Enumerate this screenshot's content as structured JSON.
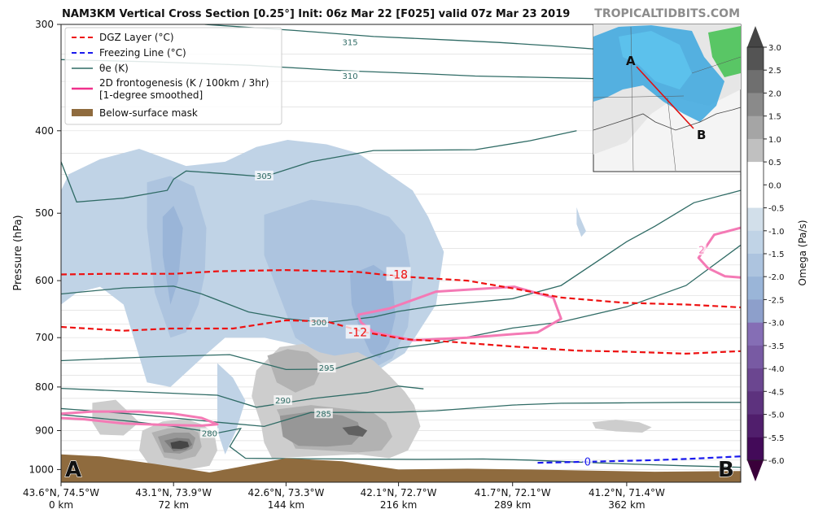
{
  "header": {
    "title": "NAM3KM Vertical Cross Section [0.25°] Init: 06z Mar 22 [F025] valid 07z Mar 23 2019",
    "brand": "TROPICALTIDBITS.COM"
  },
  "chart_data": {
    "type": "contour",
    "ylabel": "Pressure (hPa)",
    "y_scale": "log",
    "ylim": [
      1035,
      300
    ],
    "y_ticks": [
      300,
      400,
      500,
      600,
      700,
      800,
      900,
      1000
    ],
    "xlim": [
      0,
      435
    ],
    "x_ticks": [
      {
        "km": 0,
        "label1": "43.6°N, 74.5°W",
        "label2": "0 km"
      },
      {
        "km": 72,
        "label1": "43.1°N, 73.9°W",
        "label2": "72 km"
      },
      {
        "km": 144,
        "label1": "42.6°N, 73.3°W",
        "label2": "144 km"
      },
      {
        "km": 216,
        "label1": "42.1°N, 72.7°W",
        "label2": "216 km"
      },
      {
        "km": 289,
        "label1": "41.7°N, 72.1°W",
        "label2": "289 km"
      },
      {
        "km": 362,
        "label1": "41.2°N, 71.4°W",
        "label2": "362 km"
      }
    ],
    "endpoints": {
      "start": "A",
      "end": "B"
    },
    "legend": {
      "placement": "top-left",
      "entries": [
        {
          "label": "DGZ Layer (°C)",
          "color": "#ee1111",
          "style": "dashed"
        },
        {
          "label": "Freezing Line (°C)",
          "color": "#1a1aee",
          "style": "dashed"
        },
        {
          "label": "θe (K)",
          "color": "#2f6b65",
          "style": "solid"
        },
        {
          "label": "2D frontogenesis (K / 100km / 3hr)",
          "label2": "[1-degree smoothed]",
          "color": "#f0308c",
          "style": "solid"
        },
        {
          "label": "Below-surface mask",
          "color": "#8f6b3e",
          "style": "patch"
        }
      ]
    },
    "colorbar": {
      "label": "Omega (Pa/s)",
      "ticks": [
        "3.0",
        "2.5",
        "2.0",
        "1.5",
        "1.0",
        "0.5",
        "0.0",
        "-0.5",
        "-1.0",
        "-1.5",
        "-2.0",
        "-2.5",
        "-3.0",
        "-3.5",
        "-4.0",
        "-4.5",
        "-5.0",
        "-5.5",
        "-6.0"
      ]
    },
    "theta_e_labels": [
      {
        "value": "315",
        "km": 185,
        "p": 315
      },
      {
        "value": "310",
        "km": 185,
        "p": 345
      },
      {
        "value": "305",
        "km": 130,
        "p": 452
      },
      {
        "value": "300",
        "km": 165,
        "p": 672
      },
      {
        "value": "295",
        "km": 170,
        "p": 760
      },
      {
        "value": "290",
        "km": 142,
        "p": 830
      },
      {
        "value": "285",
        "km": 168,
        "p": 860
      },
      {
        "value": "280",
        "km": 95,
        "p": 907
      }
    ],
    "dgz_labels": [
      {
        "value": "-18",
        "km": 216,
        "p": 590
      },
      {
        "value": "-12",
        "km": 190,
        "p": 690
      }
    ],
    "freezing_label": {
      "value": "0",
      "km": 337,
      "p": 980
    },
    "frontogenesis_labels": [
      {
        "value": "2",
        "km": 410,
        "p": 552
      }
    ],
    "theta_e_lines": [
      {
        "km": [
          92,
          150,
          200,
          250,
          280,
          315,
          355
        ],
        "p": [
          300,
          305,
          310,
          313,
          315,
          318,
          322
        ]
      },
      {
        "km": [
          0,
          60,
          120,
          180,
          235,
          265,
          300,
          330,
          360
        ],
        "p": [
          330,
          332,
          335,
          340,
          343,
          345,
          346,
          347,
          348
        ]
      },
      {
        "km": [
          0,
          10,
          40,
          68,
          72,
          80,
          110,
          130,
          160,
          200,
          265,
          300,
          330
        ],
        "p": [
          435,
          485,
          480,
          470,
          456,
          446,
          450,
          453,
          435,
          422,
          421,
          411,
          400
        ]
      },
      {
        "km": [
          0,
          40,
          72,
          90,
          120,
          144,
          170,
          200,
          216,
          240,
          289,
          320,
          362,
          380,
          405,
          435
        ],
        "p": [
          622,
          612,
          609,
          622,
          653,
          665,
          672,
          662,
          652,
          642,
          630,
          608,
          540,
          518,
          486,
          470
        ]
      },
      {
        "km": [
          0,
          60,
          108,
          144,
          175,
          216,
          240,
          289,
          320,
          362,
          400,
          435
        ],
        "p": [
          745,
          737,
          733,
          763,
          762,
          720,
          711,
          682,
          671,
          644,
          608,
          545
        ]
      },
      {
        "km": [
          0,
          100,
          125,
          162,
          196,
          216,
          232
        ],
        "p": [
          803,
          818,
          845,
          825,
          812,
          798,
          804
        ]
      },
      {
        "km": [
          0,
          50,
          100,
          130,
          160,
          210,
          240,
          289,
          320,
          362,
          400,
          435
        ],
        "p": [
          848,
          862,
          880,
          890,
          857,
          857,
          853,
          840,
          836,
          835,
          834,
          834
        ]
      },
      {
        "km": [
          0,
          45,
          72,
          100,
          115,
          108,
          118,
          180,
          230,
          270,
          300,
          330,
          362,
          400,
          435
        ],
        "p": [
          862,
          878,
          890,
          906,
          895,
          940,
          970,
          972,
          973,
          972,
          975,
          980,
          985,
          990,
          994
        ]
      }
    ],
    "dgz_lines": [
      {
        "value": -18,
        "km": [
          0,
          30,
          60,
          72,
          100,
          144,
          190,
          216,
          260,
          290,
          320,
          360,
          400,
          435
        ],
        "p": [
          590,
          589,
          589,
          589,
          585,
          583,
          586,
          593,
          600,
          613,
          628,
          637,
          640,
          645
        ]
      },
      {
        "value": -12,
        "km": [
          0,
          40,
          70,
          110,
          144,
          170,
          195,
          220,
          250,
          289,
          330,
          360,
          400,
          435
        ],
        "p": [
          680,
          687,
          683,
          683,
          668,
          670,
          690,
          703,
          708,
          717,
          725,
          727,
          731,
          726
        ]
      }
    ],
    "freezing_line": {
      "km": [
        305,
        340,
        380,
        400,
        420,
        435
      ],
      "p": [
        982,
        979,
        975,
        972,
        968,
        965
      ]
    },
    "frontogenesis_contours": [
      {
        "km": [
          190,
          210,
          240,
          290,
          315,
          320,
          305,
          260,
          225,
          200,
          192,
          190
        ],
        "p": [
          658,
          647,
          618,
          610,
          628,
          665,
          690,
          700,
          705,
          690,
          672,
          658
        ]
      },
      {
        "km": [
          435,
          418,
          408,
          414,
          425,
          435
        ],
        "p": [
          520,
          530,
          564,
          580,
          593,
          595
        ]
      },
      {
        "km": [
          0,
          20,
          50,
          72,
          90,
          100,
          90,
          70,
          40,
          15,
          0
        ],
        "p": [
          860,
          855,
          855,
          860,
          870,
          885,
          888,
          887,
          883,
          873,
          870
        ]
      }
    ],
    "omega_regions": [
      {
        "value": -1.0,
        "km": [
          5,
          25,
          50,
          80,
          105,
          125,
          145,
          170,
          190,
          210,
          225,
          235,
          245,
          240,
          220,
          200,
          180,
          160,
          130,
          105,
          90,
          70,
          55,
          40,
          25,
          10,
          0,
          0
        ],
        "p": [
          450,
          432,
          420,
          440,
          435,
          418,
          410,
          415,
          425,
          450,
          470,
          505,
          555,
          640,
          730,
          770,
          760,
          720,
          700,
          700,
          740,
          800,
          790,
          640,
          610,
          620,
          640,
          470
        ]
      },
      {
        "value": -1.0,
        "km": [
          100,
          110,
          118,
          112,
          105,
          100
        ],
        "p": [
          750,
          780,
          830,
          900,
          960,
          900
        ]
      },
      {
        "value": -1.0,
        "km": [
          330,
          332,
          336,
          333,
          330
        ],
        "p": [
          492,
          505,
          525,
          533,
          515
        ]
      },
      {
        "value": -1.5,
        "km": [
          55,
          70,
          85,
          93,
          92,
          88,
          80,
          70,
          60,
          55
        ],
        "p": [
          460,
          452,
          465,
          520,
          590,
          640,
          690,
          700,
          620,
          520
        ]
      },
      {
        "value": -1.5,
        "km": [
          130,
          160,
          190,
          210,
          220,
          225,
          222,
          212,
          200,
          190,
          180,
          170,
          160,
          150,
          130
        ],
        "p": [
          502,
          482,
          490,
          505,
          530,
          600,
          680,
          740,
          760,
          755,
          745,
          735,
          720,
          700,
          560
        ]
      },
      {
        "value": -2.0,
        "km": [
          65,
          72,
          78,
          75,
          70,
          65
        ],
        "p": [
          505,
          490,
          520,
          600,
          640,
          560
        ]
      },
      {
        "value": -2.0,
        "km": [
          185,
          200,
          212,
          214,
          210,
          204,
          198,
          192,
          186,
          185
        ],
        "p": [
          590,
          575,
          595,
          660,
          710,
          740,
          730,
          690,
          640,
          590
        ]
      },
      {
        "value": 0.5,
        "km": [
          125,
          140,
          155,
          165,
          175,
          190,
          200,
          210,
          220,
          226,
          230,
          222,
          210,
          190,
          160,
          135,
          130,
          128,
          122,
          125
        ],
        "p": [
          765,
          718,
          712,
          728,
          735,
          728,
          745,
          775,
          810,
          840,
          890,
          950,
          970,
          960,
          965,
          970,
          930,
          885,
          820,
          765
        ]
      },
      {
        "value": 0.5,
        "km": [
          20,
          35,
          50,
          40,
          25,
          20
        ],
        "p": [
          835,
          828,
          880,
          912,
          910,
          880
        ]
      },
      {
        "value": 0.5,
        "km": [
          52,
          65,
          80,
          90,
          98,
          100,
          95,
          75,
          56,
          50,
          52
        ],
        "p": [
          900,
          878,
          872,
          885,
          905,
          950,
          990,
          1005,
          985,
          950,
          900
        ]
      },
      {
        "value": 0.5,
        "km": [
          340,
          355,
          370,
          378,
          372,
          355,
          342,
          340
        ],
        "p": [
          880,
          874,
          880,
          892,
          905,
          902,
          895,
          880
        ]
      },
      {
        "value": 1.0,
        "km": [
          132,
          145,
          158,
          168,
          162,
          150,
          138,
          132
        ],
        "p": [
          735,
          722,
          728,
          752,
          795,
          812,
          790,
          735
        ]
      },
      {
        "value": 1.0,
        "km": [
          138,
          160,
          185,
          200,
          208,
          212,
          205,
          190,
          170,
          150,
          138
        ],
        "p": [
          850,
          840,
          850,
          858,
          880,
          915,
          950,
          955,
          950,
          945,
          850
        ]
      },
      {
        "value": 1.0,
        "km": [
          58,
          68,
          80,
          88,
          90,
          86,
          76,
          66,
          58
        ],
        "p": [
          905,
          895,
          892,
          905,
          940,
          965,
          975,
          968,
          905
        ]
      },
      {
        "value": 1.5,
        "km": [
          140,
          160,
          180,
          190,
          192,
          186,
          170,
          152,
          142,
          140
        ],
        "p": [
          865,
          855,
          864,
          880,
          910,
          935,
          940,
          938,
          915,
          865
        ]
      },
      {
        "value": 1.5,
        "km": [
          62,
          72,
          82,
          86,
          84,
          76,
          66,
          62
        ],
        "p": [
          915,
          905,
          905,
          918,
          945,
          958,
          955,
          915
        ]
      },
      {
        "value": 2.0,
        "km": [
          66,
          74,
          82,
          84,
          80,
          72,
          66
        ],
        "p": [
          925,
          918,
          920,
          935,
          948,
          952,
          925
        ]
      },
      {
        "value": 2.5,
        "km": [
          180,
          190,
          196,
          193,
          184,
          180
        ],
        "p": [
          893,
          888,
          900,
          915,
          910,
          893
        ]
      },
      {
        "value": 3.0,
        "km": [
          70,
          76,
          81,
          82,
          77,
          71,
          70
        ],
        "p": [
          930,
          925,
          928,
          940,
          946,
          945,
          930
        ]
      }
    ],
    "surface_mask": {
      "km": [
        0,
        25,
        60,
        95,
        144,
        180,
        216,
        260,
        300,
        340,
        380,
        435
      ],
      "p": [
        960,
        965,
        985,
        1008,
        970,
        978,
        1000,
        998,
        1000,
        1003,
        1006,
        1004
      ]
    },
    "inset_map": {
      "labels": [
        "A",
        "B"
      ]
    }
  }
}
